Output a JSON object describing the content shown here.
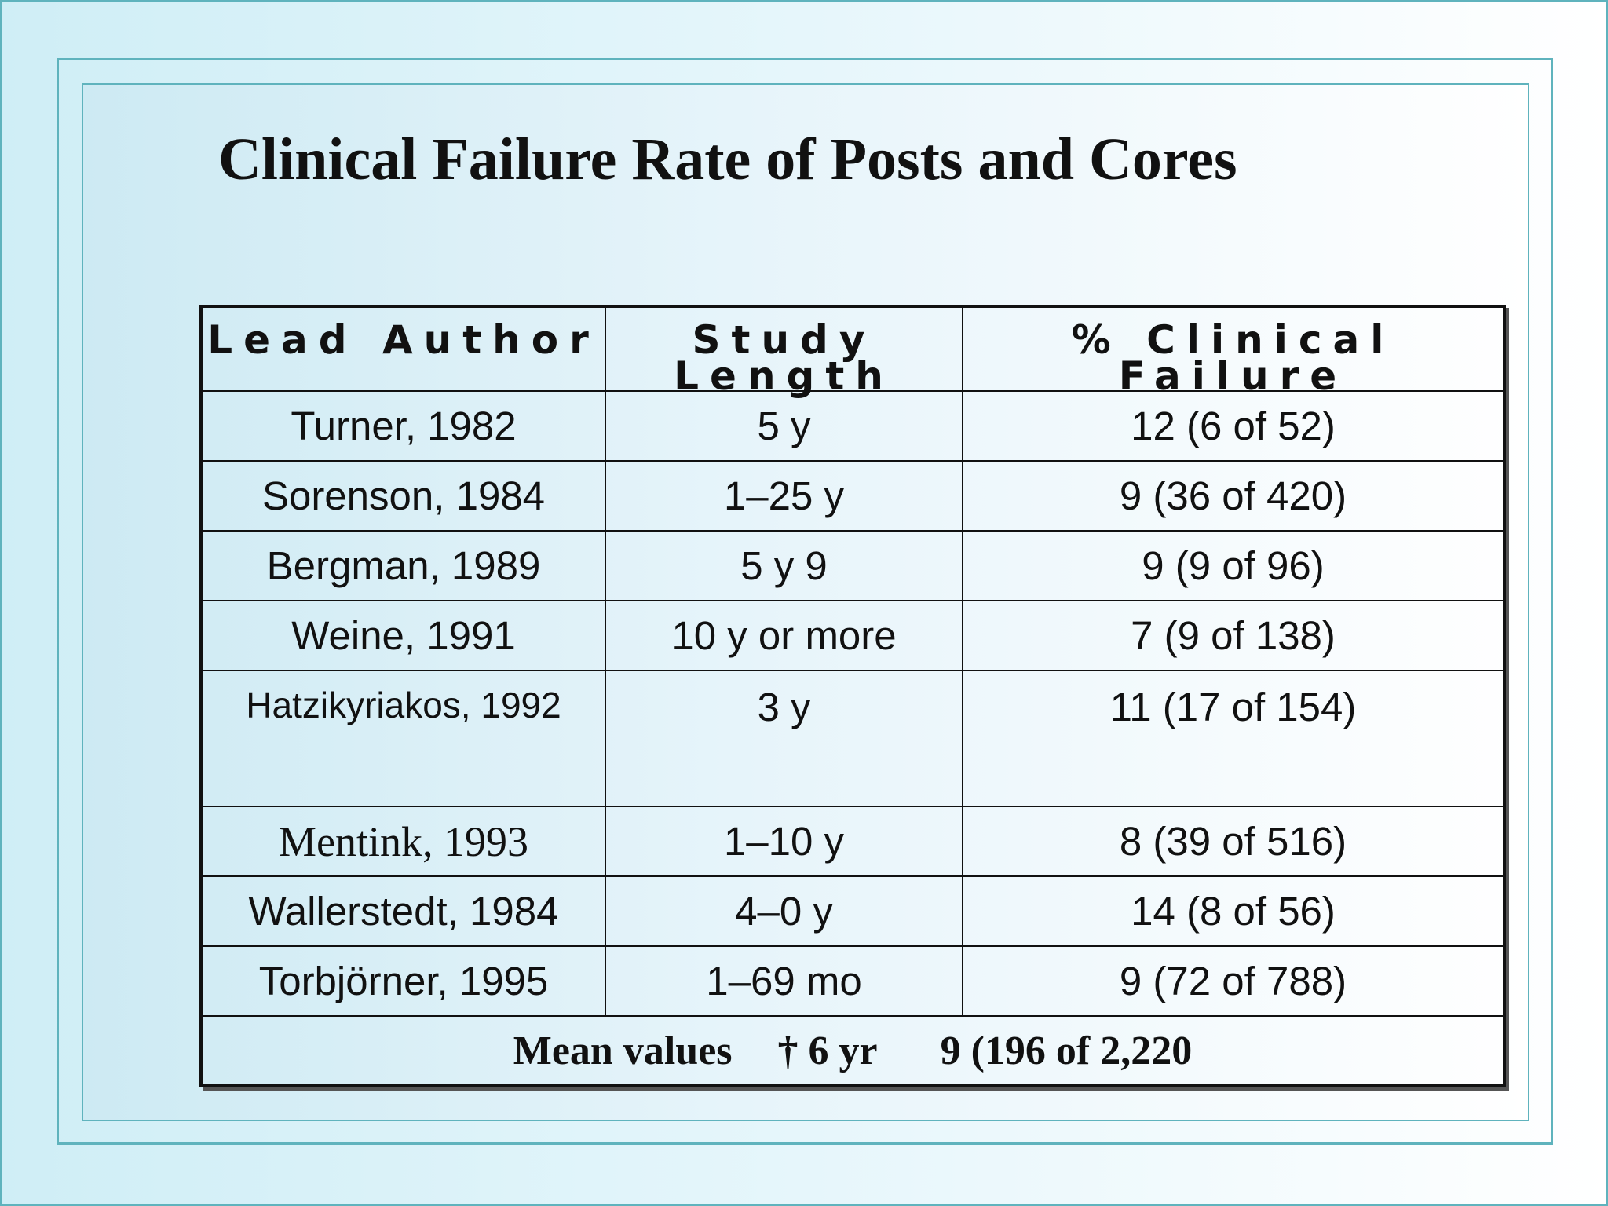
{
  "title": "Clinical Failure Rate of Posts and Cores",
  "table": {
    "headers": [
      "Lead Author",
      "Study Length",
      "% Clinical Failure"
    ],
    "rows": [
      [
        "Turner, 1982",
        "5 y",
        "12 (6 of 52)"
      ],
      [
        "Sorenson, 1984",
        "1–25 y",
        "9 (36 of 420)"
      ],
      [
        "Bergman, 1989",
        "5 y 9",
        "9 (9 of 96)"
      ],
      [
        "Weine, 1991",
        "10 y or more",
        "7 (9 of 138)"
      ],
      [
        "Hatzikyriakos, 1992",
        "3 y",
        "11 (17 of 154)"
      ],
      [
        "Mentink, 1993",
        "1–10 y",
        "8 (39 of 516)"
      ],
      [
        "Wallerstedt, 1984",
        "4–0 y",
        "14 (8 of 56)"
      ],
      [
        "Torbjörner, 1995",
        "1–69 mo",
        "9 (72 of 788)"
      ]
    ],
    "mean": {
      "label": "Mean values",
      "length": "† 6 yr",
      "failure": "9 (196 of 2,220"
    }
  }
}
